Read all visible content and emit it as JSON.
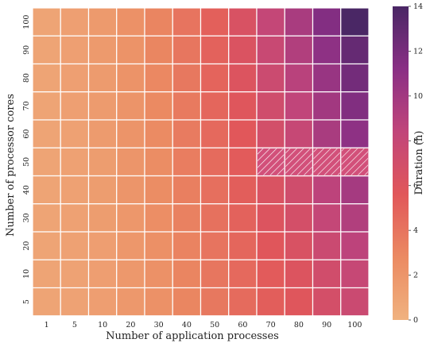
{
  "chart_data": {
    "type": "heatmap",
    "xlabel": "Number of application processes",
    "ylabel": "Number of processor cores",
    "x_categories": [
      "1",
      "5",
      "10",
      "20",
      "30",
      "40",
      "50",
      "60",
      "70",
      "80",
      "90",
      "100"
    ],
    "y_categories": [
      "100",
      "90",
      "80",
      "70",
      "60",
      "50",
      "40",
      "30",
      "20",
      "10",
      "5"
    ],
    "values": [
      [
        1.0,
        1.3,
        1.7,
        2.3,
        3.1,
        4.0,
        5.1,
        6.4,
        8.1,
        9.6,
        11.5,
        14.0
      ],
      [
        1.0,
        1.3,
        1.7,
        2.2,
        3.0,
        3.9,
        5.0,
        6.2,
        7.8,
        9.2,
        11.0,
        12.8
      ],
      [
        1.0,
        1.3,
        1.6,
        2.2,
        2.9,
        3.8,
        4.9,
        6.0,
        7.5,
        8.8,
        10.5,
        12.2
      ],
      [
        1.0,
        1.3,
        1.6,
        2.1,
        2.8,
        3.7,
        4.8,
        5.8,
        7.2,
        8.4,
        10.0,
        11.6
      ],
      [
        1.0,
        1.2,
        1.6,
        2.1,
        2.7,
        3.6,
        4.6,
        5.6,
        6.9,
        8.0,
        9.6,
        11.0
      ],
      [
        1.0,
        1.2,
        1.5,
        2.0,
        2.6,
        3.5,
        4.5,
        5.4,
        null,
        null,
        null,
        null
      ],
      [
        1.0,
        1.2,
        1.5,
        2.0,
        2.6,
        3.4,
        4.3,
        5.2,
        6.3,
        7.2,
        8.6,
        9.8
      ],
      [
        1.0,
        1.2,
        1.5,
        1.9,
        2.5,
        3.3,
        4.2,
        5.0,
        6.0,
        6.8,
        8.1,
        9.2
      ],
      [
        1.0,
        1.2,
        1.4,
        1.9,
        2.4,
        3.2,
        4.0,
        4.8,
        5.7,
        6.4,
        7.6,
        8.6
      ],
      [
        1.0,
        1.1,
        1.4,
        1.8,
        2.3,
        3.1,
        3.9,
        4.6,
        5.4,
        6.0,
        7.1,
        8.0
      ],
      [
        1.0,
        1.1,
        1.4,
        1.8,
        2.3,
        3.0,
        3.8,
        4.5,
        5.2,
        5.8,
        6.8,
        7.6
      ]
    ],
    "missing_pattern": "hatched",
    "colorbar": {
      "label": "Duration (h)",
      "min": 0,
      "max": 14,
      "ticks": [
        "0",
        "2",
        "4",
        "6",
        "8",
        "10",
        "12",
        "14"
      ],
      "colormap": [
        "#f0b27f",
        "#eb8a62",
        "#e1575a",
        "#c1457a",
        "#8a2f85",
        "#4a2765"
      ]
    }
  }
}
